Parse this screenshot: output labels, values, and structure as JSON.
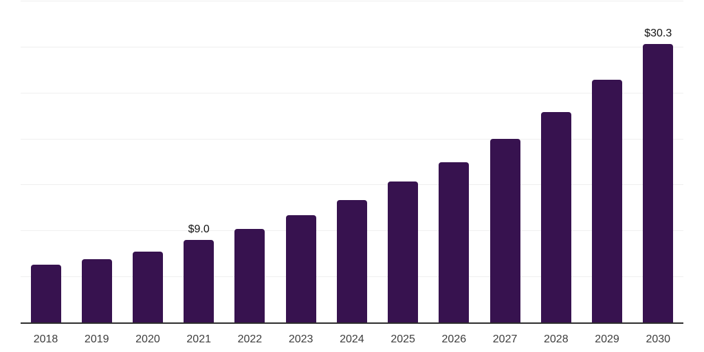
{
  "chart_data": {
    "type": "bar",
    "title": "",
    "xlabel": "",
    "ylabel": "",
    "categories": [
      "2018",
      "2019",
      "2020",
      "2021",
      "2022",
      "2023",
      "2024",
      "2025",
      "2026",
      "2027",
      "2028",
      "2029",
      "2030"
    ],
    "values": [
      6.3,
      6.9,
      7.7,
      9.0,
      10.2,
      11.7,
      13.3,
      15.3,
      17.4,
      20.0,
      22.9,
      26.4,
      30.3
    ],
    "point_labels": [
      "",
      "",
      "",
      "$9.0",
      "",
      "",
      "",
      "",
      "",
      "",
      "",
      "",
      "$30.3"
    ],
    "ylim": [
      0,
      35
    ],
    "gridline_step": 5,
    "grid": true,
    "y_tick_labels_visible": false,
    "legend": "none"
  },
  "colors": {
    "bar": "#37124F",
    "axis": "#2d2d2d",
    "gridline": "#efefef",
    "x_label_text": "#3d3d3d",
    "value_label_text": "#121212",
    "background": "#ffffff"
  }
}
